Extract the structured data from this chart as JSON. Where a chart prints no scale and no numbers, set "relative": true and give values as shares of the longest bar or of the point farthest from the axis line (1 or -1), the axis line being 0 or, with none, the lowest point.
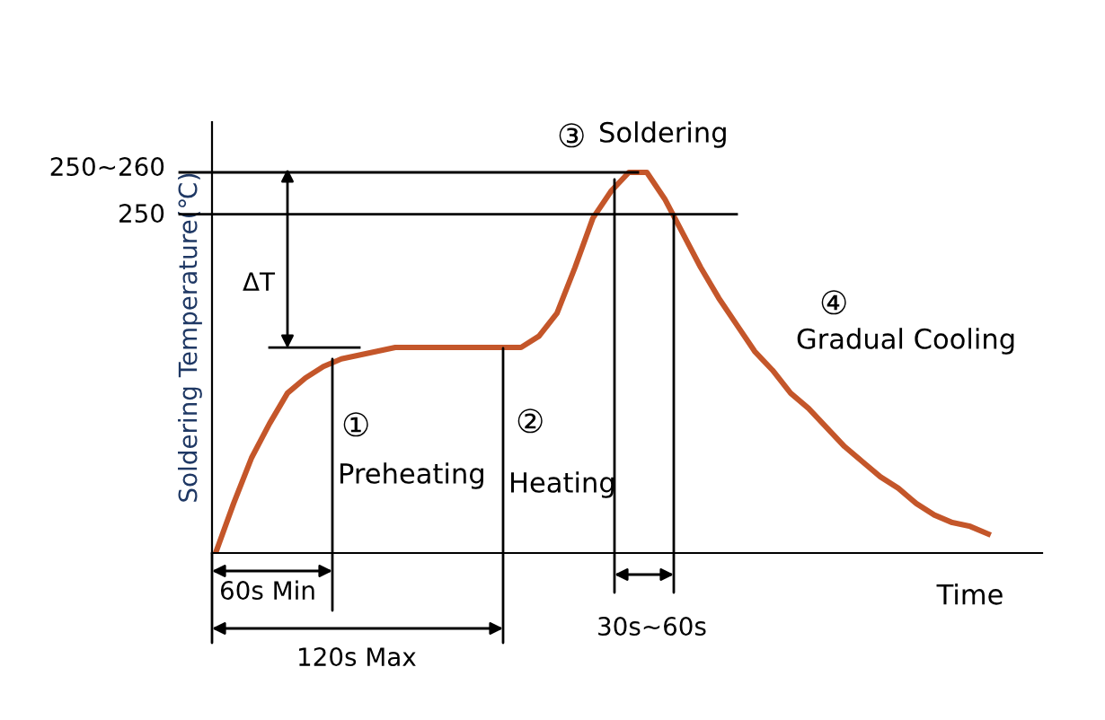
{
  "chart_data": {
    "type": "line",
    "relative": true,
    "ylabel": "Soldering Temperature(℃)",
    "xlabel": "Time",
    "color": "#c4562a",
    "marker": "none",
    "line_style": "solid",
    "categories": [
      null,
      null,
      null,
      null,
      null,
      null,
      null,
      null,
      null,
      null,
      null,
      null,
      null,
      null,
      null,
      null,
      null,
      null,
      null,
      null,
      null,
      null,
      null,
      null,
      null,
      null,
      null,
      null,
      null,
      null,
      null,
      null,
      null,
      null,
      null,
      null,
      null,
      null,
      null,
      null,
      null,
      null,
      null,
      null
    ],
    "values": [
      0,
      0.13,
      0.25,
      0.34,
      0.42,
      0.46,
      0.49,
      0.51,
      0.52,
      0.53,
      0.54,
      0.54,
      0.54,
      0.54,
      0.54,
      0.54,
      0.54,
      0.54,
      0.57,
      0.63,
      0.75,
      0.88,
      0.95,
      1.0,
      1.0,
      0.93,
      0.84,
      0.75,
      0.67,
      0.6,
      0.53,
      0.48,
      0.42,
      0.38,
      0.33,
      0.28,
      0.24,
      0.2,
      0.17,
      0.13,
      0.1,
      0.08,
      0.07,
      0.05
    ],
    "ref_lines": [
      {
        "axis": "y",
        "value": 1.0,
        "color": "#000000"
      },
      {
        "axis": "y",
        "value": 0.89,
        "color": "#000000"
      },
      {
        "axis": "y",
        "value": 0.54,
        "color": "#000000"
      }
    ],
    "annotations": [
      "250~260",
      "250",
      "①",
      "Preheating",
      "②",
      "Heating",
      "③",
      "Soldering",
      "④",
      "Gradual Cooling",
      "ΔT",
      "60s Min",
      "120s Max",
      "30s~60s"
    ]
  }
}
